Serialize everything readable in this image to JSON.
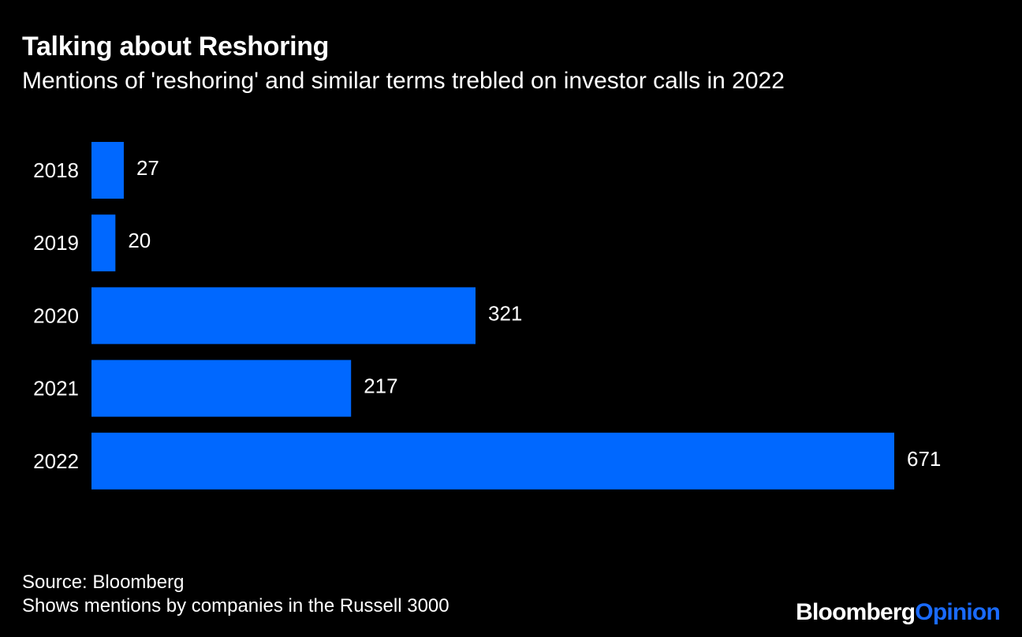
{
  "title": "Talking about Reshoring",
  "subtitle": "Mentions of 'reshoring' and similar terms trebled on investor calls in 2022",
  "footer": {
    "source": "Source: Bloomberg",
    "note": "Shows mentions by companies in the Russell 3000"
  },
  "logo": {
    "brand": "Bloomberg",
    "section": "Opinion"
  },
  "colors": {
    "background": "#000000",
    "bar": "#0068ff",
    "text": "#ffffff"
  },
  "chart_data": {
    "type": "bar",
    "orientation": "horizontal",
    "categories": [
      "2018",
      "2019",
      "2020",
      "2021",
      "2022"
    ],
    "values": [
      27,
      20,
      321,
      217,
      671
    ],
    "data_labels": true,
    "grid": false,
    "legend": "none"
  }
}
